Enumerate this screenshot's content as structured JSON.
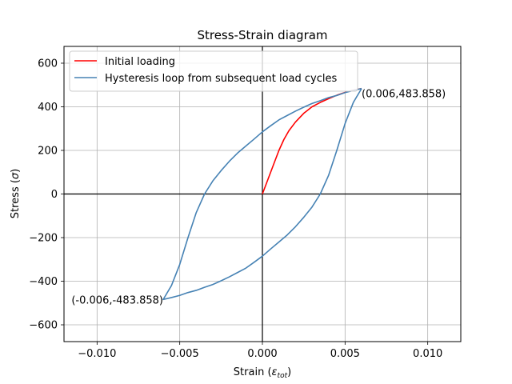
{
  "chart_data": {
    "type": "line",
    "title": "Stress-Strain diagram",
    "xlabel_main": "Strain (",
    "xlabel_symbol": "ε",
    "xlabel_sub": "tot",
    "xlabel_close": ")",
    "ylabel_main": "Stress (",
    "ylabel_symbol": "σ",
    "ylabel_close": ")",
    "xlim": [
      -0.012,
      0.012
    ],
    "ylim": [
      -677,
      677
    ],
    "xticks": [
      -0.01,
      -0.005,
      0.0,
      0.005,
      0.01
    ],
    "xtick_labels": [
      "−0.010",
      "−0.005",
      "0.000",
      "0.005",
      "0.010"
    ],
    "yticks": [
      -600,
      -400,
      -200,
      0,
      200,
      400,
      600
    ],
    "ytick_labels": [
      "−600",
      "−400",
      "−200",
      "0",
      "200",
      "400",
      "600"
    ],
    "grid": true,
    "legend_position": "top-left",
    "series": [
      {
        "name": "Initial loading",
        "color": "#ff0000",
        "points": [
          [
            0.0,
            0
          ],
          [
            0.0002,
            40
          ],
          [
            0.0005,
            100
          ],
          [
            0.0008,
            160
          ],
          [
            0.001,
            200
          ],
          [
            0.0013,
            250
          ],
          [
            0.0016,
            290
          ],
          [
            0.002,
            330
          ],
          [
            0.0025,
            370
          ],
          [
            0.003,
            400
          ],
          [
            0.0035,
            420
          ],
          [
            0.004,
            437
          ],
          [
            0.0045,
            453
          ],
          [
            0.005,
            466
          ],
          [
            0.0055,
            476
          ],
          [
            0.006,
            483.858
          ]
        ]
      },
      {
        "name": "Hysteresis loop from subsequent load cycles",
        "color": "#4682b4",
        "points": [
          [
            0.006,
            483.858
          ],
          [
            0.0055,
            420
          ],
          [
            0.005,
            323
          ],
          [
            0.0045,
            200
          ],
          [
            0.004,
            85
          ],
          [
            0.0035,
            0
          ],
          [
            0.003,
            -60
          ],
          [
            0.0025,
            -107
          ],
          [
            0.002,
            -150
          ],
          [
            0.0015,
            -188
          ],
          [
            0.001,
            -220
          ],
          [
            0.0005,
            -252
          ],
          [
            0.0,
            -285
          ],
          [
            -0.0005,
            -313
          ],
          [
            -0.001,
            -340
          ],
          [
            -0.0015,
            -360
          ],
          [
            -0.002,
            -380
          ],
          [
            -0.0025,
            -398
          ],
          [
            -0.003,
            -415
          ],
          [
            -0.0035,
            -428
          ],
          [
            -0.004,
            -442
          ],
          [
            -0.0045,
            -452
          ],
          [
            -0.005,
            -465
          ],
          [
            -0.0055,
            -475
          ],
          [
            -0.006,
            -483.858
          ],
          [
            -0.0055,
            -420
          ],
          [
            -0.005,
            -323
          ],
          [
            -0.0045,
            -200
          ],
          [
            -0.004,
            -85
          ],
          [
            -0.0035,
            0
          ],
          [
            -0.003,
            60
          ],
          [
            -0.0025,
            107
          ],
          [
            -0.002,
            150
          ],
          [
            -0.0015,
            188
          ],
          [
            -0.001,
            220
          ],
          [
            -0.0005,
            252
          ],
          [
            0.0,
            285
          ],
          [
            0.0005,
            313
          ],
          [
            0.001,
            340
          ],
          [
            0.0015,
            360
          ],
          [
            0.002,
            380
          ],
          [
            0.0025,
            398
          ],
          [
            0.003,
            415
          ],
          [
            0.0035,
            428
          ],
          [
            0.004,
            442
          ],
          [
            0.0045,
            452
          ],
          [
            0.005,
            465
          ],
          [
            0.0055,
            475
          ],
          [
            0.006,
            483.858
          ]
        ]
      }
    ],
    "annotations": [
      {
        "text": "(0.006,483.858)",
        "x": 0.006,
        "y": 483.858,
        "anchor": "start"
      },
      {
        "text": "(-0.006,-483.858)",
        "x": -0.006,
        "y": -483.858,
        "anchor": "end"
      }
    ],
    "reference_lines": [
      {
        "orientation": "horizontal",
        "value": 0,
        "color": "#000000"
      },
      {
        "orientation": "vertical",
        "value": 0,
        "color": "#000000"
      }
    ]
  }
}
